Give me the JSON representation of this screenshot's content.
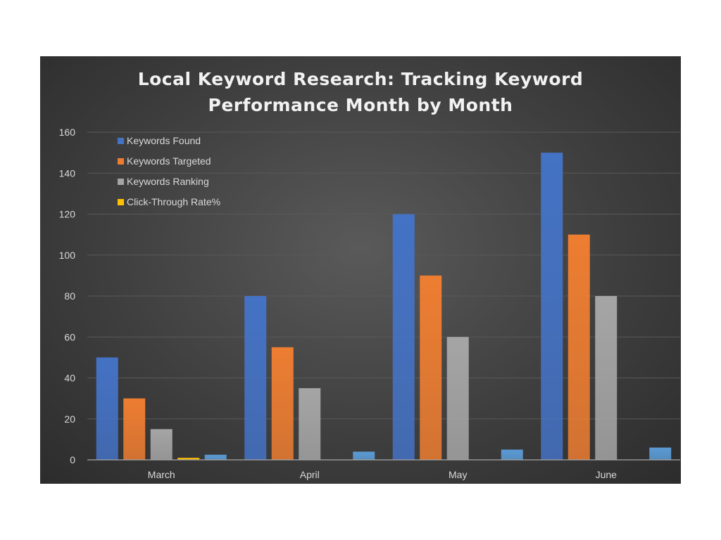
{
  "colors": {
    "series": [
      "#4472C4",
      "#ED7D31",
      "#A5A5A5",
      "#FFC000",
      "#5B9BD5"
    ],
    "grid": "#595959",
    "axis_text": "#d9d9d9"
  },
  "chart_data": {
    "type": "bar",
    "title": "Local Keyword Research: Tracking Keyword Performance Month by Month",
    "title_lines": [
      "Local Keyword Research: Tracking Keyword",
      "Performance Month by Month"
    ],
    "categories": [
      "March",
      "April",
      "May",
      "June"
    ],
    "series": [
      {
        "name": "Keywords Found",
        "values": [
          50,
          80,
          120,
          150
        ]
      },
      {
        "name": "Keywords Targeted",
        "values": [
          30,
          55,
          90,
          110
        ]
      },
      {
        "name": "Keywords Ranking",
        "values": [
          15,
          35,
          60,
          80
        ]
      },
      {
        "name": "Click-Through Rate%",
        "values": [
          1,
          0,
          0,
          0
        ]
      },
      {
        "values": [
          2.5,
          4,
          5,
          6
        ]
      }
    ],
    "ylim": [
      0,
      160
    ],
    "yticks": [
      0,
      20,
      40,
      60,
      80,
      100,
      120,
      140,
      160
    ],
    "grid": true,
    "legend_position": "top-left"
  }
}
